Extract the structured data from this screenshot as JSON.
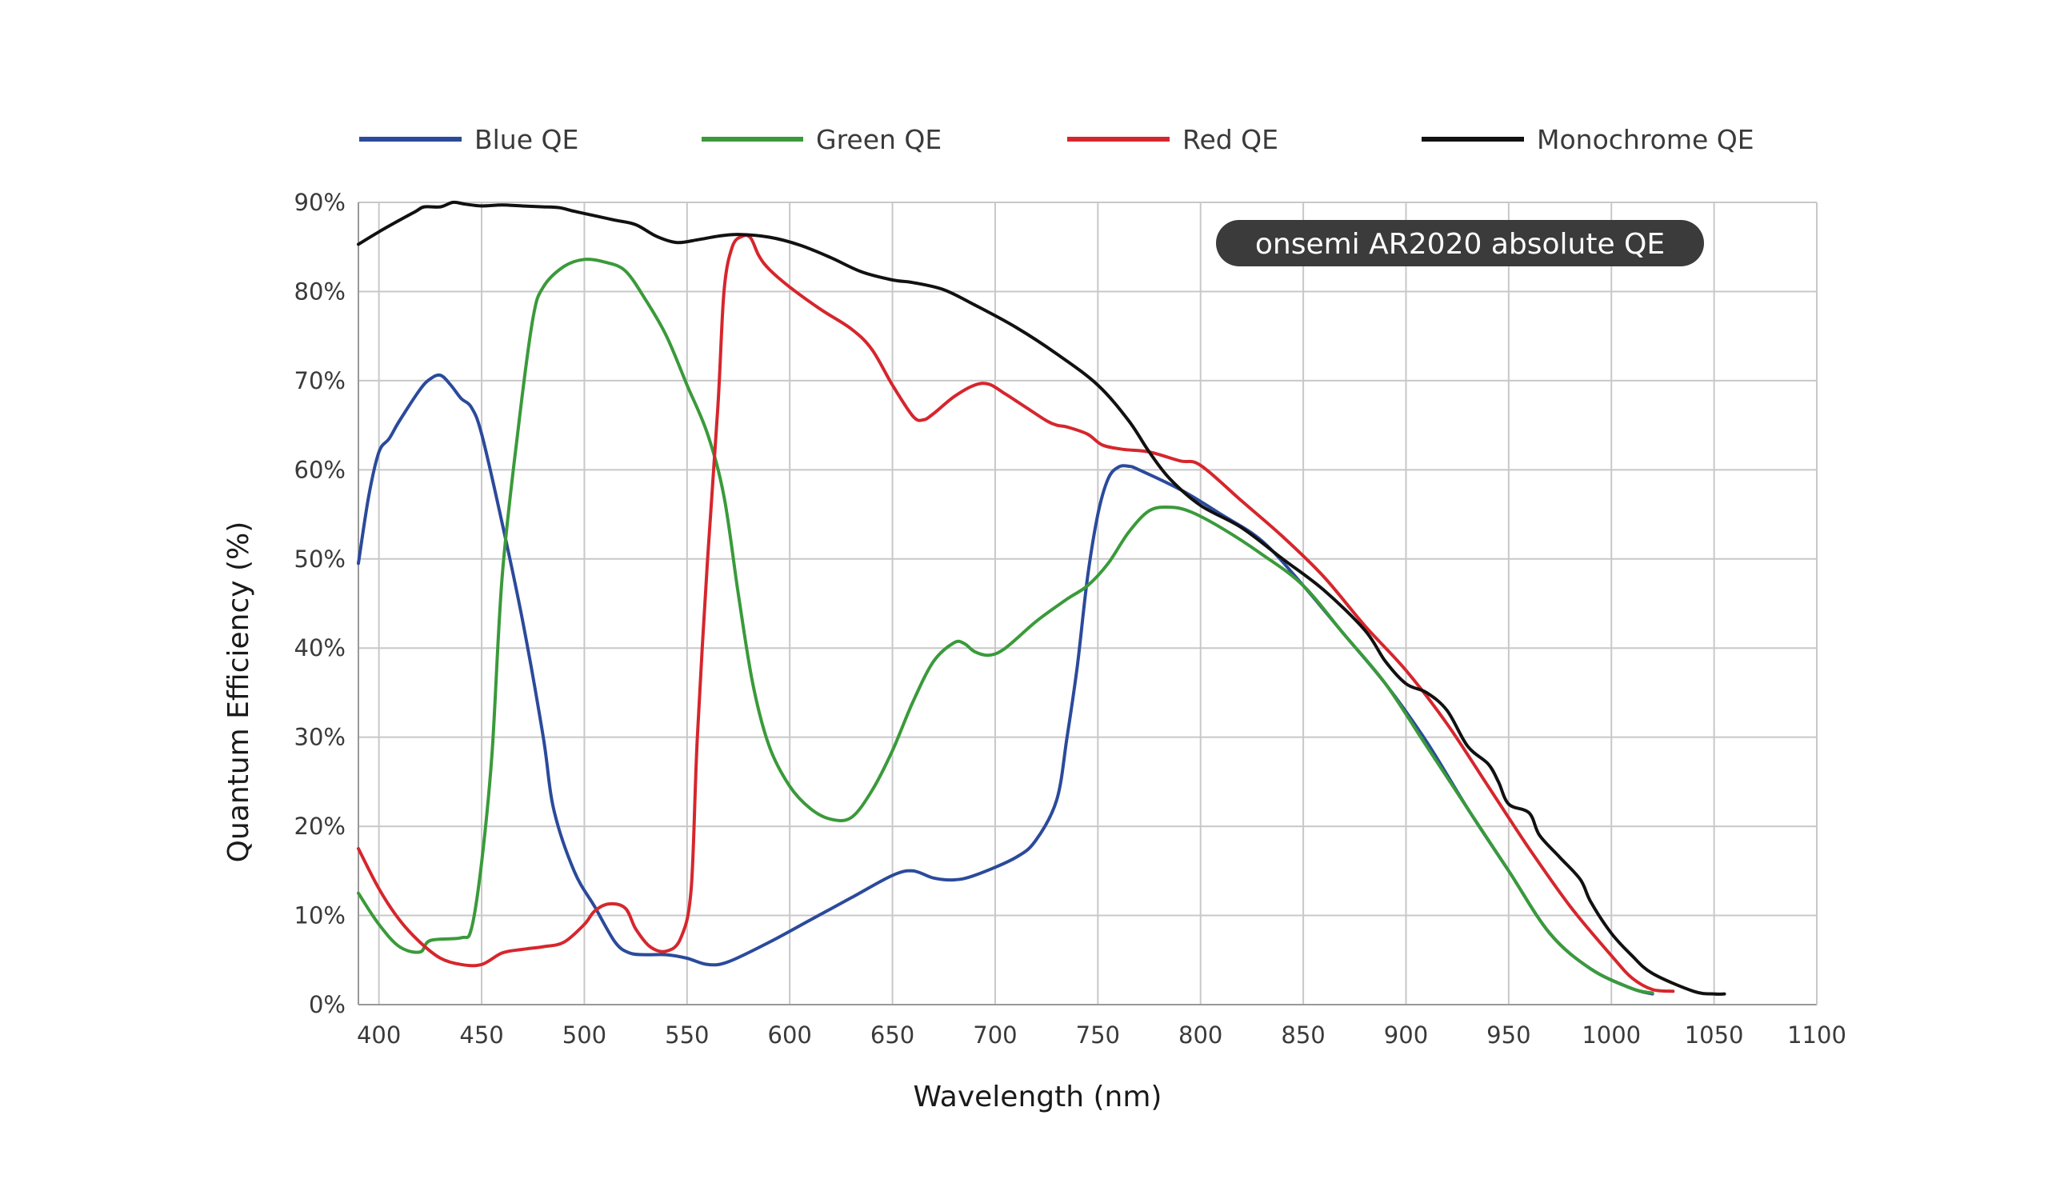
{
  "chart_data": {
    "type": "line",
    "title": "",
    "xlabel": "Wavelength (nm)",
    "ylabel": "Quantum Efficiency (%)",
    "annotation": "onsemi AR2020 absolute QE",
    "xlim": [
      390,
      1100
    ],
    "ylim": [
      0,
      90
    ],
    "x_ticks": [
      400,
      450,
      500,
      550,
      600,
      650,
      700,
      750,
      800,
      850,
      900,
      950,
      1000,
      1050,
      1100
    ],
    "x_tick_labels": [
      "400",
      "450",
      "500",
      "550",
      "600",
      "650",
      "700",
      "750",
      "800",
      "850",
      "900",
      "950",
      "1000",
      "1050",
      "1100"
    ],
    "y_ticks": [
      0,
      10,
      20,
      30,
      40,
      50,
      60,
      70,
      80,
      90
    ],
    "y_tick_labels": [
      "0%",
      "10%",
      "20%",
      "30%",
      "40%",
      "50%",
      "60%",
      "70%",
      "80%",
      "90%"
    ],
    "grid": true,
    "legend_position": "top",
    "series": [
      {
        "name": "Blue QE",
        "color": "#2b4a9b",
        "points": [
          [
            390,
            49.5
          ],
          [
            395,
            57
          ],
          [
            400,
            62
          ],
          [
            405,
            63.5
          ],
          [
            410,
            65.5
          ],
          [
            420,
            69
          ],
          [
            425,
            70.2
          ],
          [
            430,
            70.6
          ],
          [
            435,
            69.5
          ],
          [
            440,
            68
          ],
          [
            445,
            67
          ],
          [
            450,
            64
          ],
          [
            460,
            54
          ],
          [
            470,
            43
          ],
          [
            480,
            30
          ],
          [
            485,
            22
          ],
          [
            495,
            15
          ],
          [
            505,
            11
          ],
          [
            515,
            7
          ],
          [
            522,
            5.8
          ],
          [
            530,
            5.6
          ],
          [
            540,
            5.6
          ],
          [
            550,
            5.2
          ],
          [
            560,
            4.5
          ],
          [
            570,
            4.8
          ],
          [
            590,
            7
          ],
          [
            610,
            9.5
          ],
          [
            630,
            12
          ],
          [
            650,
            14.5
          ],
          [
            660,
            15
          ],
          [
            670,
            14.2
          ],
          [
            680,
            14
          ],
          [
            690,
            14.5
          ],
          [
            710,
            16.5
          ],
          [
            720,
            18.5
          ],
          [
            730,
            23
          ],
          [
            735,
            30
          ],
          [
            740,
            38
          ],
          [
            745,
            48
          ],
          [
            750,
            55
          ],
          [
            755,
            59
          ],
          [
            760,
            60.3
          ],
          [
            765,
            60.4
          ],
          [
            770,
            60
          ],
          [
            790,
            57.8
          ],
          [
            810,
            55
          ],
          [
            830,
            52
          ],
          [
            850,
            47
          ],
          [
            870,
            41.5
          ],
          [
            890,
            36
          ],
          [
            910,
            29.5
          ],
          [
            930,
            22
          ],
          [
            950,
            15
          ],
          [
            970,
            8
          ],
          [
            990,
            4
          ],
          [
            1010,
            1.8
          ],
          [
            1020,
            1.2
          ]
        ]
      },
      {
        "name": "Green QE",
        "color": "#3a9a3a",
        "points": [
          [
            390,
            12.5
          ],
          [
            400,
            9
          ],
          [
            410,
            6.5
          ],
          [
            420,
            5.9
          ],
          [
            425,
            7.2
          ],
          [
            440,
            7.5
          ],
          [
            445,
            8.5
          ],
          [
            450,
            16
          ],
          [
            455,
            28
          ],
          [
            460,
            48
          ],
          [
            468,
            65
          ],
          [
            475,
            77
          ],
          [
            480,
            80.5
          ],
          [
            490,
            82.8
          ],
          [
            500,
            83.6
          ],
          [
            510,
            83.3
          ],
          [
            520,
            82.3
          ],
          [
            530,
            79
          ],
          [
            540,
            75
          ],
          [
            550,
            69.5
          ],
          [
            560,
            64
          ],
          [
            568,
            57
          ],
          [
            575,
            46
          ],
          [
            582,
            36
          ],
          [
            590,
            29
          ],
          [
            600,
            24.5
          ],
          [
            610,
            22
          ],
          [
            620,
            20.8
          ],
          [
            630,
            21
          ],
          [
            640,
            24
          ],
          [
            650,
            28.5
          ],
          [
            660,
            34
          ],
          [
            670,
            38.5
          ],
          [
            680,
            40.6
          ],
          [
            685,
            40.5
          ],
          [
            690,
            39.6
          ],
          [
            697,
            39.2
          ],
          [
            705,
            40
          ],
          [
            720,
            43
          ],
          [
            735,
            45.5
          ],
          [
            745,
            47
          ],
          [
            755,
            49.5
          ],
          [
            765,
            53
          ],
          [
            775,
            55.4
          ],
          [
            785,
            55.8
          ],
          [
            795,
            55.3
          ],
          [
            810,
            53.5
          ],
          [
            830,
            50.5
          ],
          [
            850,
            47
          ],
          [
            870,
            41.5
          ],
          [
            890,
            36
          ],
          [
            910,
            29
          ],
          [
            930,
            22
          ],
          [
            950,
            15
          ],
          [
            970,
            8
          ],
          [
            990,
            4
          ],
          [
            1010,
            1.8
          ],
          [
            1020,
            1.3
          ]
        ]
      },
      {
        "name": "Red QE",
        "color": "#d6262d",
        "points": [
          [
            390,
            17.5
          ],
          [
            400,
            13
          ],
          [
            410,
            9.5
          ],
          [
            420,
            7
          ],
          [
            430,
            5.2
          ],
          [
            440,
            4.5
          ],
          [
            450,
            4.5
          ],
          [
            460,
            5.8
          ],
          [
            470,
            6.2
          ],
          [
            480,
            6.5
          ],
          [
            490,
            7
          ],
          [
            500,
            9
          ],
          [
            505,
            10.5
          ],
          [
            512,
            11.3
          ],
          [
            520,
            10.8
          ],
          [
            525,
            8.5
          ],
          [
            532,
            6.5
          ],
          [
            540,
            6
          ],
          [
            547,
            7.5
          ],
          [
            552,
            13
          ],
          [
            555,
            30
          ],
          [
            560,
            50
          ],
          [
            565,
            67
          ],
          [
            568,
            80
          ],
          [
            572,
            85
          ],
          [
            577,
            86.2
          ],
          [
            581,
            86
          ],
          [
            585,
            84
          ],
          [
            590,
            82.5
          ],
          [
            600,
            80.5
          ],
          [
            615,
            78
          ],
          [
            630,
            75.8
          ],
          [
            640,
            73.5
          ],
          [
            650,
            69.5
          ],
          [
            660,
            66
          ],
          [
            665,
            65.6
          ],
          [
            670,
            66.3
          ],
          [
            680,
            68.2
          ],
          [
            690,
            69.5
          ],
          [
            697,
            69.6
          ],
          [
            705,
            68.5
          ],
          [
            715,
            67
          ],
          [
            725,
            65.5
          ],
          [
            730,
            65
          ],
          [
            735,
            64.8
          ],
          [
            745,
            64
          ],
          [
            752,
            62.8
          ],
          [
            762,
            62.3
          ],
          [
            775,
            62
          ],
          [
            790,
            61
          ],
          [
            800,
            60.5
          ],
          [
            820,
            56.5
          ],
          [
            840,
            52.5
          ],
          [
            860,
            48
          ],
          [
            880,
            42.5
          ],
          [
            900,
            37.5
          ],
          [
            920,
            31.5
          ],
          [
            940,
            24.5
          ],
          [
            960,
            17.5
          ],
          [
            980,
            11
          ],
          [
            1000,
            5.5
          ],
          [
            1010,
            3
          ],
          [
            1020,
            1.7
          ],
          [
            1030,
            1.5
          ]
        ]
      },
      {
        "name": "Monochrome QE",
        "color": "#111111",
        "points": [
          [
            390,
            85.3
          ],
          [
            400,
            86.7
          ],
          [
            410,
            88
          ],
          [
            418,
            89
          ],
          [
            422,
            89.5
          ],
          [
            430,
            89.5
          ],
          [
            436,
            90
          ],
          [
            442,
            89.8
          ],
          [
            450,
            89.6
          ],
          [
            460,
            89.7
          ],
          [
            470,
            89.6
          ],
          [
            480,
            89.5
          ],
          [
            488,
            89.4
          ],
          [
            495,
            89
          ],
          [
            505,
            88.5
          ],
          [
            515,
            88
          ],
          [
            525,
            87.5
          ],
          [
            535,
            86.2
          ],
          [
            545,
            85.5
          ],
          [
            555,
            85.8
          ],
          [
            565,
            86.2
          ],
          [
            575,
            86.4
          ],
          [
            590,
            86.1
          ],
          [
            605,
            85.2
          ],
          [
            620,
            83.8
          ],
          [
            635,
            82.2
          ],
          [
            650,
            81.3
          ],
          [
            660,
            81
          ],
          [
            675,
            80.2
          ],
          [
            690,
            78.5
          ],
          [
            710,
            76
          ],
          [
            730,
            73
          ],
          [
            750,
            69.5
          ],
          [
            765,
            65.5
          ],
          [
            775,
            62
          ],
          [
            785,
            59
          ],
          [
            800,
            56
          ],
          [
            820,
            53.5
          ],
          [
            840,
            50
          ],
          [
            860,
            46.5
          ],
          [
            880,
            42
          ],
          [
            890,
            38.5
          ],
          [
            900,
            36
          ],
          [
            910,
            35
          ],
          [
            920,
            33
          ],
          [
            930,
            29
          ],
          [
            940,
            27
          ],
          [
            945,
            25
          ],
          [
            950,
            22.5
          ],
          [
            960,
            21.5
          ],
          [
            965,
            19
          ],
          [
            975,
            16.5
          ],
          [
            985,
            14
          ],
          [
            990,
            11.5
          ],
          [
            1000,
            8
          ],
          [
            1010,
            5.5
          ],
          [
            1020,
            3.5
          ],
          [
            1040,
            1.5
          ],
          [
            1050,
            1.2
          ],
          [
            1055,
            1.2
          ]
        ]
      }
    ]
  }
}
